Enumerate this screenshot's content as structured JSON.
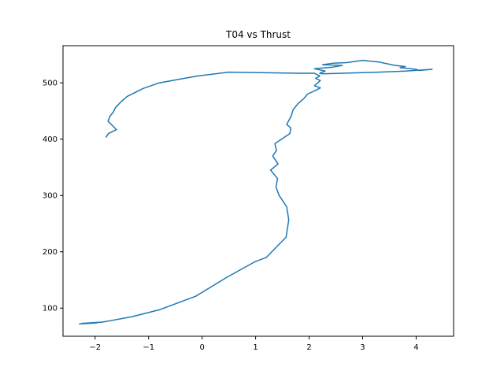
{
  "chart_data": {
    "type": "line",
    "title": "T04 vs Thrust",
    "xlabel": "",
    "ylabel": "",
    "xlim": [
      -2.6,
      4.7
    ],
    "ylim": [
      50,
      566
    ],
    "xticks": [
      -2,
      -1,
      0,
      1,
      2,
      3,
      4
    ],
    "yticks": [
      100,
      200,
      300,
      400,
      500
    ],
    "xtick_labels": [
      "−2",
      "−1",
      "0",
      "1",
      "2",
      "3",
      "4"
    ],
    "ytick_labels": [
      "100",
      "200",
      "300",
      "400",
      "500"
    ],
    "grid": false,
    "series": [
      {
        "color": "#1f77b4",
        "points": [
          [
            -2.3,
            72
          ],
          [
            -2.1,
            73
          ],
          [
            -1.95,
            74
          ],
          [
            -2.05,
            74
          ],
          [
            -2.15,
            73
          ],
          [
            -2.25,
            73
          ],
          [
            -2.05,
            74
          ],
          [
            -1.88,
            75
          ],
          [
            -1.75,
            77
          ],
          [
            -1.3,
            85
          ],
          [
            -0.8,
            97
          ],
          [
            -0.12,
            121
          ],
          [
            0.45,
            154
          ],
          [
            0.98,
            182
          ],
          [
            1.2,
            190
          ],
          [
            1.57,
            226
          ],
          [
            1.62,
            257
          ],
          [
            1.58,
            280
          ],
          [
            1.44,
            300
          ],
          [
            1.38,
            315
          ],
          [
            1.41,
            330
          ],
          [
            1.28,
            345
          ],
          [
            1.42,
            356
          ],
          [
            1.32,
            370
          ],
          [
            1.39,
            380
          ],
          [
            1.36,
            392
          ],
          [
            1.64,
            410
          ],
          [
            1.66,
            420
          ],
          [
            1.58,
            426
          ],
          [
            1.66,
            440
          ],
          [
            1.7,
            452
          ],
          [
            1.79,
            463
          ],
          [
            1.9,
            472
          ],
          [
            1.97,
            480
          ],
          [
            2.15,
            488
          ],
          [
            2.21,
            491
          ],
          [
            2.1,
            495
          ],
          [
            2.21,
            504
          ],
          [
            2.12,
            508
          ],
          [
            2.2,
            512
          ],
          [
            2.1,
            517
          ],
          [
            1.8,
            517
          ],
          [
            0.5,
            519
          ],
          [
            -0.1,
            512
          ],
          [
            -0.8,
            500
          ],
          [
            -1.1,
            490
          ],
          [
            -1.4,
            476
          ],
          [
            -1.52,
            466
          ],
          [
            -1.62,
            456
          ],
          [
            -1.66,
            448
          ],
          [
            -1.72,
            441
          ],
          [
            -1.76,
            432
          ],
          [
            -1.6,
            417
          ],
          [
            -1.75,
            410
          ],
          [
            -1.8,
            403
          ]
        ]
      },
      {
        "color": "#1f77b4",
        "points": [
          [
            2.25,
            516
          ],
          [
            3.3,
            519
          ],
          [
            3.8,
            521
          ],
          [
            4.3,
            524
          ],
          [
            4.05,
            522
          ],
          [
            4.0,
            524
          ],
          [
            3.7,
            527
          ],
          [
            3.8,
            529
          ],
          [
            3.6,
            531
          ],
          [
            3.3,
            537
          ],
          [
            3.0,
            540
          ],
          [
            2.7,
            536
          ],
          [
            2.45,
            535
          ],
          [
            2.25,
            532
          ],
          [
            2.62,
            531
          ],
          [
            2.45,
            528
          ],
          [
            2.1,
            525
          ],
          [
            2.3,
            521
          ],
          [
            2.2,
            517
          ],
          [
            2.25,
            516
          ]
        ]
      }
    ]
  }
}
